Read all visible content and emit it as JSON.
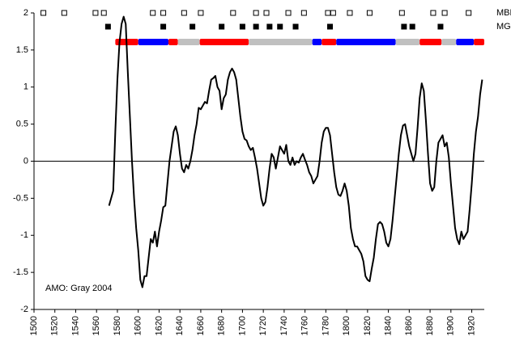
{
  "chart_data": {
    "type": "line",
    "annotation": "AMO: Gray 2004",
    "color": "#000000",
    "xlim": [
      1500,
      1932
    ],
    "ylim": [
      -2,
      2
    ],
    "xticks": [
      1500,
      1520,
      1540,
      1560,
      1580,
      1600,
      1620,
      1640,
      1660,
      1680,
      1700,
      1720,
      1740,
      1760,
      1780,
      1800,
      1820,
      1840,
      1860,
      1880,
      1900,
      1920
    ],
    "yticks": [
      -2,
      -1.5,
      -1,
      -0.5,
      0,
      0.5,
      1,
      1.5,
      2
    ],
    "zero_line": true,
    "x": [
      1572,
      1574,
      1576,
      1578,
      1580,
      1582,
      1584,
      1586,
      1588,
      1590,
      1592,
      1594,
      1596,
      1598,
      1600,
      1602,
      1604,
      1606,
      1608,
      1610,
      1612,
      1614,
      1616,
      1618,
      1620,
      1622,
      1624,
      1626,
      1628,
      1630,
      1632,
      1634,
      1636,
      1638,
      1640,
      1642,
      1644,
      1646,
      1648,
      1650,
      1652,
      1654,
      1656,
      1658,
      1660,
      1662,
      1664,
      1666,
      1668,
      1670,
      1672,
      1674,
      1676,
      1678,
      1680,
      1682,
      1684,
      1686,
      1688,
      1690,
      1692,
      1694,
      1696,
      1698,
      1700,
      1702,
      1704,
      1706,
      1708,
      1710,
      1712,
      1714,
      1716,
      1718,
      1720,
      1722,
      1724,
      1726,
      1728,
      1730,
      1732,
      1734,
      1736,
      1738,
      1740,
      1742,
      1744,
      1746,
      1748,
      1750,
      1752,
      1754,
      1756,
      1758,
      1760,
      1762,
      1764,
      1766,
      1768,
      1770,
      1772,
      1774,
      1776,
      1778,
      1780,
      1782,
      1784,
      1786,
      1788,
      1790,
      1792,
      1794,
      1796,
      1798,
      1800,
      1802,
      1804,
      1806,
      1808,
      1810,
      1812,
      1814,
      1816,
      1818,
      1820,
      1822,
      1824,
      1826,
      1828,
      1830,
      1832,
      1834,
      1836,
      1838,
      1840,
      1842,
      1844,
      1846,
      1848,
      1850,
      1852,
      1854,
      1856,
      1858,
      1860,
      1862,
      1864,
      1866,
      1868,
      1870,
      1872,
      1874,
      1876,
      1878,
      1880,
      1882,
      1884,
      1886,
      1888,
      1890,
      1892,
      1894,
      1896,
      1898,
      1900,
      1902,
      1904,
      1906,
      1908,
      1910,
      1912,
      1914,
      1916,
      1918,
      1920,
      1922,
      1924,
      1926,
      1928,
      1930
    ],
    "values": [
      -0.6,
      -0.5,
      -0.4,
      0.4,
      1.1,
      1.6,
      1.85,
      1.95,
      1.85,
      1.2,
      0.6,
      0.0,
      -0.5,
      -0.9,
      -1.2,
      -1.6,
      -1.7,
      -1.55,
      -1.55,
      -1.3,
      -1.05,
      -1.1,
      -0.95,
      -1.15,
      -0.95,
      -0.8,
      -0.62,
      -0.6,
      -0.3,
      0.0,
      0.2,
      0.4,
      0.47,
      0.35,
      0.1,
      -0.1,
      -0.15,
      -0.05,
      -0.1,
      0.0,
      0.15,
      0.35,
      0.5,
      0.72,
      0.7,
      0.75,
      0.8,
      0.78,
      0.95,
      1.1,
      1.12,
      1.15,
      1.0,
      0.95,
      0.7,
      0.85,
      0.9,
      1.1,
      1.2,
      1.25,
      1.2,
      1.1,
      0.85,
      0.6,
      0.4,
      0.3,
      0.28,
      0.2,
      0.15,
      0.18,
      0.05,
      -0.1,
      -0.3,
      -0.5,
      -0.6,
      -0.55,
      -0.35,
      -0.1,
      0.1,
      0.05,
      -0.1,
      0.05,
      0.2,
      0.15,
      0.1,
      0.22,
      0.0,
      -0.05,
      0.05,
      -0.05,
      0.0,
      -0.02,
      0.05,
      0.1,
      0.02,
      -0.05,
      -0.15,
      -0.2,
      -0.3,
      -0.25,
      -0.2,
      0.0,
      0.25,
      0.4,
      0.45,
      0.45,
      0.35,
      0.1,
      -0.15,
      -0.35,
      -0.45,
      -0.47,
      -0.4,
      -0.3,
      -0.4,
      -0.6,
      -0.9,
      -1.05,
      -1.15,
      -1.15,
      -1.2,
      -1.25,
      -1.35,
      -1.55,
      -1.6,
      -1.62,
      -1.45,
      -1.3,
      -1.05,
      -0.85,
      -0.82,
      -0.85,
      -0.95,
      -1.1,
      -1.15,
      -1.05,
      -0.8,
      -0.5,
      -0.2,
      0.1,
      0.35,
      0.48,
      0.5,
      0.35,
      0.2,
      0.1,
      0.0,
      0.1,
      0.45,
      0.85,
      1.05,
      0.95,
      0.55,
      0.1,
      -0.3,
      -0.4,
      -0.35,
      0.0,
      0.25,
      0.3,
      0.35,
      0.2,
      0.25,
      0.05,
      -0.3,
      -0.6,
      -0.9,
      -1.05,
      -1.12,
      -0.95,
      -1.05,
      -1.0,
      -0.95,
      -0.65,
      -0.3,
      0.1,
      0.4,
      0.6,
      0.9,
      1.1
    ],
    "event_rows": [
      {
        "name": "MBH",
        "marker": "open",
        "x": [
          1509,
          1529,
          1559,
          1567,
          1614,
          1624,
          1644,
          1660,
          1691,
          1713,
          1723,
          1744,
          1759,
          1782,
          1787,
          1803,
          1822,
          1853,
          1883,
          1894,
          1917
        ]
      },
      {
        "name": "MGH",
        "marker": "filled",
        "x": [
          1571,
          1624,
          1652,
          1680,
          1700,
          1713,
          1726,
          1736,
          1751,
          1784,
          1855,
          1863,
          1890
        ]
      }
    ],
    "phase_bar": [
      {
        "start": 1578,
        "end": 1600,
        "color": "#ff0000"
      },
      {
        "start": 1600,
        "end": 1629,
        "color": "#0000ff"
      },
      {
        "start": 1629,
        "end": 1638,
        "color": "#ff0000"
      },
      {
        "start": 1638,
        "end": 1659,
        "color": "#c0c0c0"
      },
      {
        "start": 1659,
        "end": 1706,
        "color": "#ff0000"
      },
      {
        "start": 1706,
        "end": 1767,
        "color": "#c0c0c0"
      },
      {
        "start": 1767,
        "end": 1776,
        "color": "#0000ff"
      },
      {
        "start": 1776,
        "end": 1790,
        "color": "#ff0000"
      },
      {
        "start": 1790,
        "end": 1847,
        "color": "#0000ff"
      },
      {
        "start": 1847,
        "end": 1870,
        "color": "#c0c0c0"
      },
      {
        "start": 1870,
        "end": 1891,
        "color": "#ff0000"
      },
      {
        "start": 1891,
        "end": 1905,
        "color": "#c0c0c0"
      },
      {
        "start": 1905,
        "end": 1922,
        "color": "#0000ff"
      },
      {
        "start": 1922,
        "end": 1932,
        "color": "#ff0000"
      }
    ]
  }
}
